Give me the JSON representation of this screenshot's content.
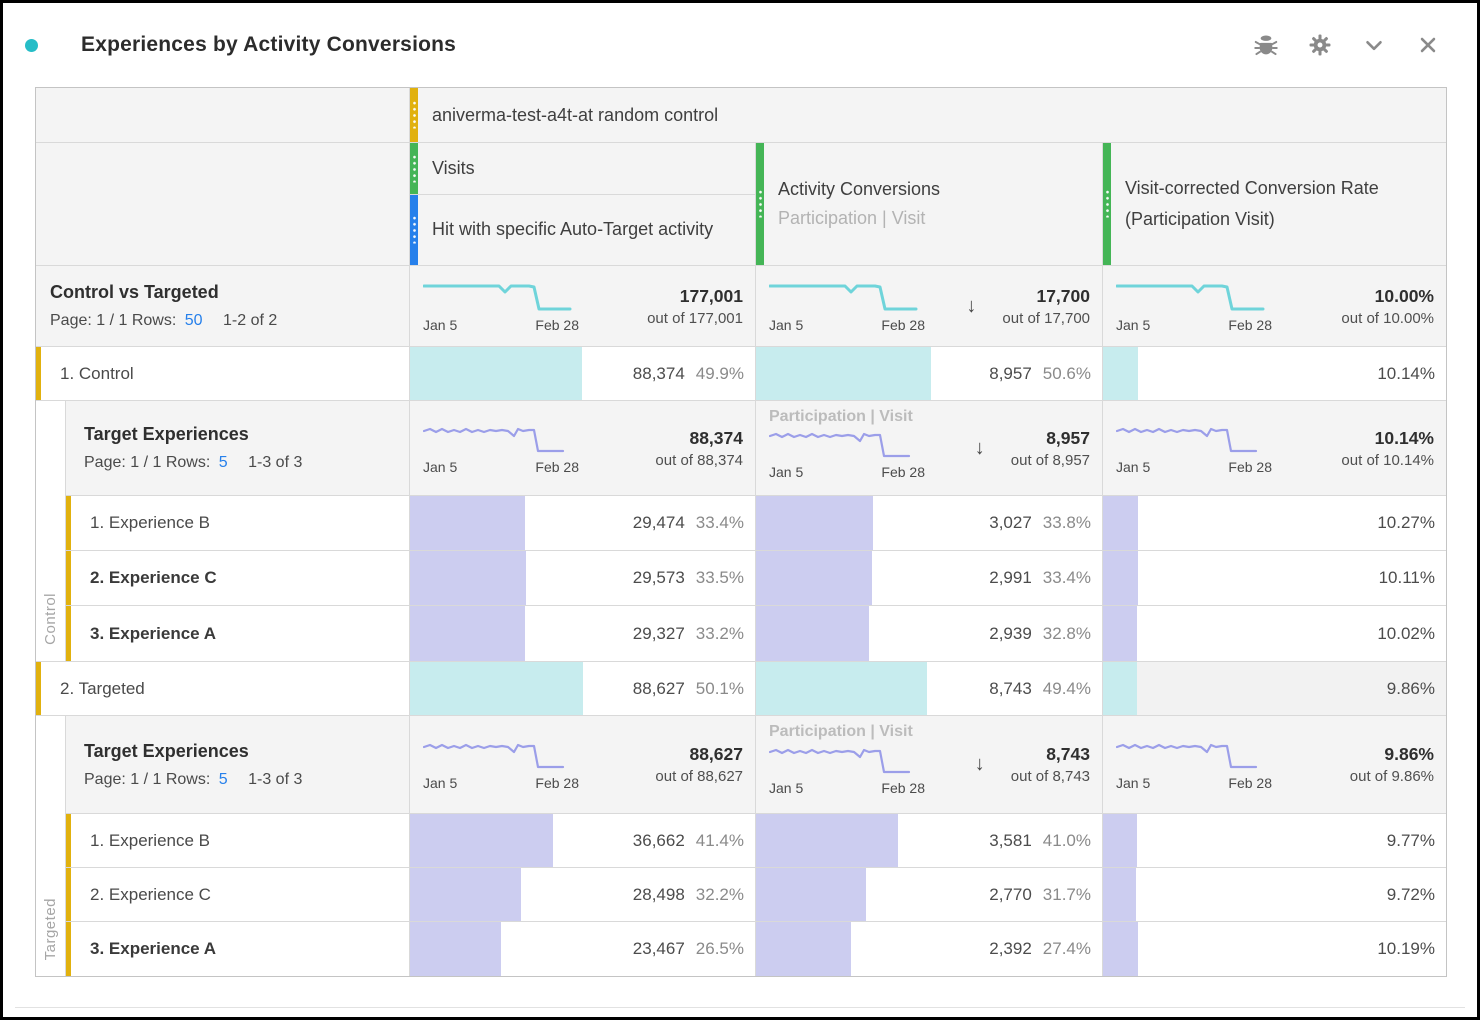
{
  "colors": {
    "accent_dot": "#26bdc7",
    "gold": "#e1b10e",
    "green": "#44b556",
    "blue": "#2680eb",
    "teal_bar": "#c7ecee",
    "teal_spark": "#6fd4da",
    "purple_bar": "#cccdf0",
    "purple_spark": "#9b9ee9",
    "link": "#2680eb"
  },
  "panel": {
    "title": "Experiences by Activity Conversions",
    "icons": [
      "debug-icon",
      "settings-gear-icon",
      "collapse-chevron-icon",
      "close-icon"
    ]
  },
  "header": {
    "segment": "aniverma-test-a4t-at random control",
    "visits": "Visits",
    "hit": "Hit with specific Auto-Target activity",
    "conversions": "Activity Conversions",
    "conversions_sub": "Participation | Visit",
    "rate": "Visit-corrected Conversion Rate (Participation Visit)"
  },
  "spark": {
    "start": "Jan 5",
    "end": "Feb 28"
  },
  "totals": {
    "title": "Control vs Targeted",
    "pagination": "Page: 1 / 1 Rows:",
    "rows_link": "50",
    "range": "1-2 of 2",
    "visits_value": "177,001",
    "visits_outof": "out of 177,001",
    "conv_value": "17,700",
    "conv_outof": "out of 17,700",
    "rate_value": "10.00%",
    "rate_outof": "out of 10.00%"
  },
  "row_control": {
    "label": "1. Control",
    "visits_value": "88,374",
    "visits_pct": "49.9%",
    "visits_bar": 49.9,
    "conv_value": "8,957",
    "conv_pct": "50.6%",
    "conv_bar": 50.6,
    "rate_value": "10.14%",
    "rate_bar": 10.14
  },
  "block_control": {
    "side": "Control",
    "title": "Target Experiences",
    "pagination": "Page: 1 / 1 Rows:",
    "rows_link": "5",
    "range": "1-3 of 3",
    "metric_tag": "Participation | Visit",
    "visits_value": "88,374",
    "visits_outof": "out of 88,374",
    "conv_value": "8,957",
    "conv_outof": "out of 8,957",
    "rate_value": "10.14%",
    "rate_outof": "out of 10.14%",
    "rows": [
      {
        "label": "1. Experience B",
        "bold": false,
        "visits_value": "29,474",
        "visits_pct": "33.4%",
        "visits_bar": 33.4,
        "conv_value": "3,027",
        "conv_pct": "33.8%",
        "conv_bar": 33.8,
        "rate_value": "10.27%",
        "rate_bar": 10.27
      },
      {
        "label": "2. Experience C",
        "bold": true,
        "visits_value": "29,573",
        "visits_pct": "33.5%",
        "visits_bar": 33.5,
        "conv_value": "2,991",
        "conv_pct": "33.4%",
        "conv_bar": 33.4,
        "rate_value": "10.11%",
        "rate_bar": 10.11
      },
      {
        "label": "3. Experience A",
        "bold": true,
        "visits_value": "29,327",
        "visits_pct": "33.2%",
        "visits_bar": 33.2,
        "conv_value": "2,939",
        "conv_pct": "32.8%",
        "conv_bar": 32.8,
        "rate_value": "10.02%",
        "rate_bar": 10.02
      }
    ]
  },
  "row_targeted": {
    "label": "2. Targeted",
    "visits_value": "88,627",
    "visits_pct": "50.1%",
    "visits_bar": 50.1,
    "conv_value": "8,743",
    "conv_pct": "49.4%",
    "conv_bar": 49.4,
    "rate_value": "9.86%",
    "rate_bar": 9.86
  },
  "block_targeted": {
    "side": "Targeted",
    "title": "Target Experiences",
    "pagination": "Page: 1 / 1 Rows:",
    "rows_link": "5",
    "range": "1-3 of 3",
    "metric_tag": "Participation | Visit",
    "visits_value": "88,627",
    "visits_outof": "out of 88,627",
    "conv_value": "8,743",
    "conv_outof": "out of 8,743",
    "rate_value": "9.86%",
    "rate_outof": "out of 9.86%",
    "rows": [
      {
        "label": "1. Experience B",
        "bold": false,
        "visits_value": "36,662",
        "visits_pct": "41.4%",
        "visits_bar": 41.4,
        "conv_value": "3,581",
        "conv_pct": "41.0%",
        "conv_bar": 41.0,
        "rate_value": "9.77%",
        "rate_bar": 9.77
      },
      {
        "label": "2. Experience C",
        "bold": false,
        "visits_value": "28,498",
        "visits_pct": "32.2%",
        "visits_bar": 32.2,
        "conv_value": "2,770",
        "conv_pct": "31.7%",
        "conv_bar": 31.7,
        "rate_value": "9.72%",
        "rate_bar": 9.72
      },
      {
        "label": "3. Experience A",
        "bold": true,
        "visits_value": "23,467",
        "visits_pct": "26.5%",
        "visits_bar": 26.5,
        "conv_value": "2,392",
        "conv_pct": "27.4%",
        "conv_bar": 27.4,
        "rate_value": "10.19%",
        "rate_bar": 10.19
      }
    ]
  }
}
